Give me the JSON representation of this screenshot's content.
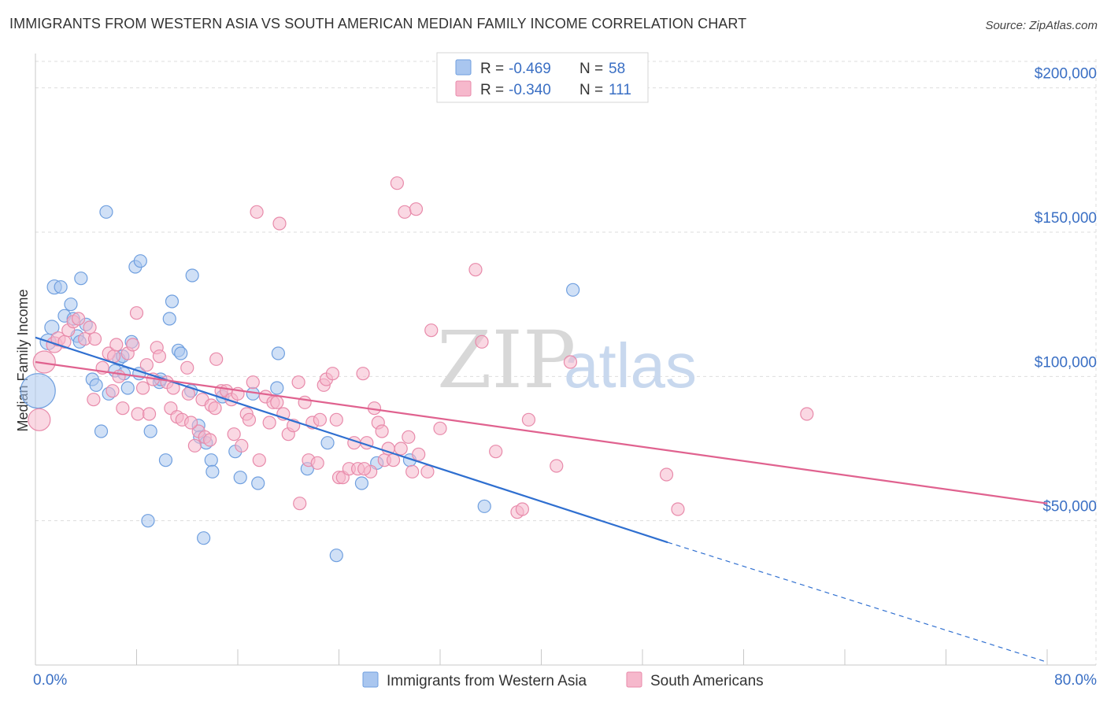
{
  "header": {
    "title": "IMMIGRANTS FROM WESTERN ASIA VS SOUTH AMERICAN MEDIAN FAMILY INCOME CORRELATION CHART",
    "source": "Source: ZipAtlas.com"
  },
  "watermark": {
    "zip": "ZIP",
    "atlas": "atlas"
  },
  "legend": {
    "rows": [
      {
        "r_label": "R =",
        "r_value": "-0.469",
        "n_label": "N =",
        "n_value": "58"
      },
      {
        "r_label": "R =",
        "r_value": "-0.340",
        "n_label": "N =",
        "n_value": "111"
      }
    ]
  },
  "bottom_legend": {
    "items": [
      {
        "label": "Immigrants from Western Asia"
      },
      {
        "label": "South Americans"
      }
    ]
  },
  "colors": {
    "blue_fill": "#a9c6ef",
    "blue_stroke": "#6f9fdf",
    "blue_line": "#2f6fd0",
    "pink_fill": "#f6b8cc",
    "pink_stroke": "#e88aaa",
    "pink_line": "#e0628f",
    "grid": "#dddddd",
    "axis_text": "#3a6fc4"
  },
  "chart_data": {
    "type": "scatter",
    "title": "IMMIGRANTS FROM WESTERN ASIA VS SOUTH AMERICAN MEDIAN FAMILY INCOME CORRELATION CHART",
    "ylabel": "Median Family Income",
    "xlabel": "",
    "xlim": [
      0,
      80
    ],
    "ylim": [
      0,
      210000
    ],
    "x_tick_labels": [
      "0.0%",
      "80.0%"
    ],
    "y_ticks": [
      {
        "value": 50000,
        "label": "$50,000"
      },
      {
        "value": 100000,
        "label": "$100,000"
      },
      {
        "value": 150000,
        "label": "$150,000"
      },
      {
        "value": 200000,
        "label": "$200,000"
      }
    ],
    "grid": true,
    "legend_position": "top-center",
    "series": [
      {
        "name": "Immigrants from Western Asia",
        "r": -0.469,
        "n": 58,
        "trend": {
          "x0": 0,
          "y0": 113500,
          "x1": 50,
          "y1": 42500,
          "dash_to_x": 80,
          "dash_to_y": 1000
        },
        "points": [
          [
            0.2,
            95000,
            22
          ],
          [
            1.0,
            112000,
            10
          ],
          [
            1.3,
            117000,
            9
          ],
          [
            1.5,
            131000,
            9
          ],
          [
            2.0,
            131000,
            8
          ],
          [
            2.3,
            121000,
            8
          ],
          [
            2.8,
            125000,
            8
          ],
          [
            3.0,
            120000,
            8
          ],
          [
            3.3,
            114000,
            8
          ],
          [
            3.5,
            112000,
            8
          ],
          [
            3.6,
            134000,
            8
          ],
          [
            4.0,
            118000,
            8
          ],
          [
            4.5,
            99000,
            8
          ],
          [
            4.8,
            97000,
            8
          ],
          [
            5.2,
            81000,
            8
          ],
          [
            5.6,
            157000,
            8
          ],
          [
            5.8,
            94000,
            8
          ],
          [
            6.3,
            102000,
            8
          ],
          [
            6.6,
            106000,
            8
          ],
          [
            7.0,
            101000,
            8
          ],
          [
            6.9,
            107000,
            8
          ],
          [
            7.3,
            96000,
            8
          ],
          [
            7.6,
            112000,
            8
          ],
          [
            7.9,
            138000,
            8
          ],
          [
            8.3,
            140000,
            8
          ],
          [
            8.2,
            101000,
            8
          ],
          [
            8.9,
            50000,
            8
          ],
          [
            9.1,
            81000,
            8
          ],
          [
            9.8,
            98000,
            8
          ],
          [
            10.3,
            71000,
            8
          ],
          [
            10.6,
            120000,
            8
          ],
          [
            10.8,
            126000,
            8
          ],
          [
            11.3,
            109000,
            8
          ],
          [
            11.5,
            108000,
            8
          ],
          [
            12.3,
            95000,
            8
          ],
          [
            12.4,
            135000,
            8
          ],
          [
            12.9,
            83000,
            8
          ],
          [
            13.0,
            79000,
            8
          ],
          [
            13.3,
            44000,
            8
          ],
          [
            13.5,
            77000,
            8
          ],
          [
            13.9,
            71000,
            8
          ],
          [
            14.0,
            67000,
            8
          ],
          [
            14.8,
            93000,
            8
          ],
          [
            15.8,
            74000,
            8
          ],
          [
            16.2,
            65000,
            8
          ],
          [
            17.2,
            94000,
            8
          ],
          [
            17.6,
            63000,
            8
          ],
          [
            19.1,
            96000,
            8
          ],
          [
            19.2,
            108000,
            8
          ],
          [
            21.5,
            68000,
            8
          ],
          [
            23.1,
            77000,
            8
          ],
          [
            23.8,
            38000,
            8
          ],
          [
            25.8,
            63000,
            8
          ],
          [
            29.6,
            71000,
            8
          ],
          [
            35.5,
            55000,
            8
          ],
          [
            42.5,
            130000,
            8
          ],
          [
            27.0,
            70000,
            8
          ],
          [
            9.9,
            99000,
            8
          ]
        ]
      },
      {
        "name": "South Americans",
        "r": -0.34,
        "n": 111,
        "trend": {
          "x0": 0,
          "y0": 105000,
          "x1": 80,
          "y1": 56000
        },
        "points": [
          [
            0.3,
            85000,
            14
          ],
          [
            0.7,
            105000,
            14
          ],
          [
            1.5,
            111000,
            10
          ],
          [
            1.8,
            113000,
            9
          ],
          [
            2.3,
            112000,
            8
          ],
          [
            2.6,
            116000,
            8
          ],
          [
            3.0,
            119000,
            8
          ],
          [
            3.4,
            120000,
            8
          ],
          [
            3.9,
            113000,
            8
          ],
          [
            4.3,
            117000,
            8
          ],
          [
            4.6,
            92000,
            8
          ],
          [
            5.3,
            103000,
            8
          ],
          [
            5.8,
            108000,
            8
          ],
          [
            6.1,
            95000,
            8
          ],
          [
            6.2,
            107000,
            8
          ],
          [
            6.4,
            111000,
            8
          ],
          [
            6.6,
            100000,
            8
          ],
          [
            6.9,
            89000,
            8
          ],
          [
            7.3,
            108000,
            8
          ],
          [
            7.7,
            111000,
            8
          ],
          [
            8.0,
            122000,
            8
          ],
          [
            8.1,
            87000,
            8
          ],
          [
            8.5,
            96000,
            8
          ],
          [
            8.8,
            104000,
            8
          ],
          [
            9.0,
            87000,
            8
          ],
          [
            9.6,
            110000,
            8
          ],
          [
            9.8,
            107000,
            8
          ],
          [
            10.4,
            98000,
            8
          ],
          [
            10.7,
            89000,
            8
          ],
          [
            10.9,
            96000,
            8
          ],
          [
            11.2,
            86000,
            8
          ],
          [
            11.6,
            85000,
            8
          ],
          [
            12.0,
            103000,
            8
          ],
          [
            12.1,
            94000,
            8
          ],
          [
            12.6,
            76000,
            8
          ],
          [
            12.9,
            81000,
            8
          ],
          [
            13.2,
            92000,
            8
          ],
          [
            13.4,
            79000,
            8
          ],
          [
            13.8,
            78000,
            8
          ],
          [
            13.9,
            90000,
            8
          ],
          [
            14.2,
            89000,
            8
          ],
          [
            14.3,
            106000,
            8
          ],
          [
            14.7,
            95000,
            8
          ],
          [
            15.1,
            95000,
            8
          ],
          [
            15.5,
            92000,
            8
          ],
          [
            15.7,
            80000,
            8
          ],
          [
            16.0,
            94000,
            8
          ],
          [
            16.3,
            76000,
            8
          ],
          [
            16.7,
            87000,
            8
          ],
          [
            16.9,
            85000,
            8
          ],
          [
            17.2,
            98000,
            8
          ],
          [
            17.5,
            157000,
            8
          ],
          [
            17.7,
            71000,
            8
          ],
          [
            18.2,
            93000,
            8
          ],
          [
            18.5,
            84000,
            8
          ],
          [
            18.8,
            91000,
            8
          ],
          [
            19.1,
            91000,
            8
          ],
          [
            19.3,
            153000,
            8
          ],
          [
            19.6,
            87000,
            8
          ],
          [
            20.0,
            80000,
            8
          ],
          [
            20.4,
            83000,
            8
          ],
          [
            20.8,
            98000,
            8
          ],
          [
            20.9,
            56000,
            8
          ],
          [
            21.3,
            91000,
            8
          ],
          [
            21.6,
            71000,
            8
          ],
          [
            21.9,
            84000,
            8
          ],
          [
            22.3,
            70000,
            8
          ],
          [
            22.5,
            85000,
            8
          ],
          [
            22.8,
            97000,
            8
          ],
          [
            23.0,
            99000,
            8
          ],
          [
            23.5,
            101000,
            8
          ],
          [
            23.8,
            85000,
            8
          ],
          [
            24.0,
            65000,
            8
          ],
          [
            24.3,
            65000,
            8
          ],
          [
            24.8,
            68000,
            8
          ],
          [
            25.2,
            77000,
            8
          ],
          [
            25.5,
            68000,
            8
          ],
          [
            25.9,
            101000,
            8
          ],
          [
            26.2,
            77000,
            8
          ],
          [
            26.5,
            67000,
            8
          ],
          [
            26.8,
            89000,
            8
          ],
          [
            27.1,
            84000,
            8
          ],
          [
            27.4,
            81000,
            8
          ],
          [
            27.6,
            71000,
            8
          ],
          [
            27.9,
            75000,
            8
          ],
          [
            28.3,
            71000,
            8
          ],
          [
            28.6,
            167000,
            8
          ],
          [
            28.9,
            75000,
            8
          ],
          [
            29.2,
            157000,
            8
          ],
          [
            29.5,
            79000,
            8
          ],
          [
            29.8,
            67000,
            8
          ],
          [
            30.1,
            158000,
            8
          ],
          [
            30.3,
            73000,
            8
          ],
          [
            31.0,
            67000,
            8
          ],
          [
            31.3,
            116000,
            8
          ],
          [
            32.0,
            82000,
            8
          ],
          [
            34.8,
            137000,
            8
          ],
          [
            35.3,
            112000,
            8
          ],
          [
            36.4,
            74000,
            8
          ],
          [
            38.1,
            53000,
            8
          ],
          [
            38.5,
            54000,
            8
          ],
          [
            39.0,
            85000,
            8
          ],
          [
            41.2,
            69000,
            8
          ],
          [
            42.3,
            105000,
            8
          ],
          [
            49.9,
            66000,
            8
          ],
          [
            50.8,
            54000,
            8
          ],
          [
            61.0,
            87000,
            8
          ],
          [
            26.0,
            68000,
            8
          ],
          [
            12.3,
            84000,
            8
          ],
          [
            9.3,
            99000,
            8
          ],
          [
            4.7,
            113000,
            8
          ]
        ]
      }
    ]
  }
}
